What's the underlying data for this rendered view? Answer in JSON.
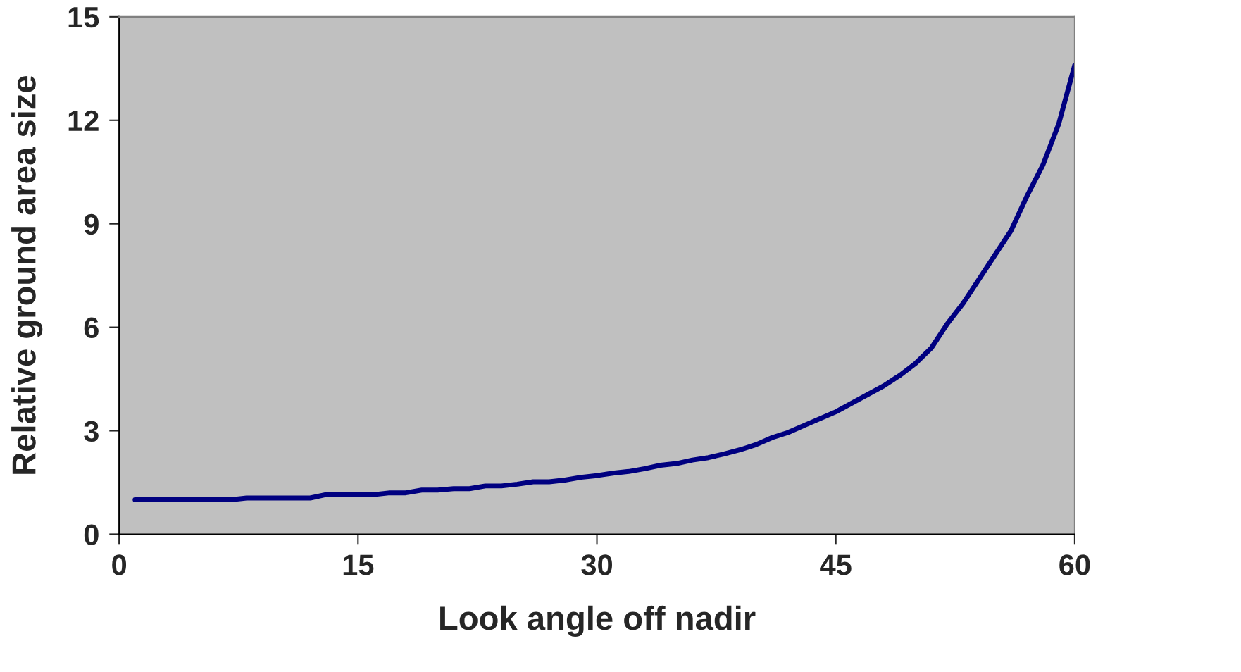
{
  "chart_data": {
    "type": "line",
    "xlabel": "Look angle off nadir",
    "ylabel": "Relative ground area size",
    "x": [
      1,
      7,
      8,
      12,
      13,
      16,
      17,
      18,
      19,
      20,
      21,
      22,
      23,
      24,
      25,
      26,
      27,
      28,
      29,
      30,
      31,
      32,
      33,
      34,
      35,
      36,
      37,
      38,
      39,
      40,
      41,
      42,
      43,
      44,
      45,
      46,
      47,
      48,
      49,
      50,
      51,
      52,
      53,
      54,
      55,
      56,
      57,
      58,
      59,
      60
    ],
    "series": [
      {
        "color": "#000080",
        "values": [
          1.0,
          1.0,
          1.05,
          1.05,
          1.15,
          1.15,
          1.2,
          1.2,
          1.28,
          1.28,
          1.32,
          1.32,
          1.4,
          1.4,
          1.45,
          1.52,
          1.52,
          1.57,
          1.65,
          1.7,
          1.77,
          1.82,
          1.9,
          2.0,
          2.05,
          2.15,
          2.22,
          2.33,
          2.45,
          2.6,
          2.8,
          2.95,
          3.15,
          3.35,
          3.55,
          3.8,
          4.05,
          4.3,
          4.6,
          4.95,
          5.4,
          6.1,
          6.7,
          7.4,
          8.1,
          8.8,
          9.8,
          10.7,
          11.9,
          13.6
        ]
      }
    ],
    "xlim": [
      0,
      60
    ],
    "xticks": [
      0,
      15,
      30,
      45,
      60
    ],
    "ylim": [
      0,
      15
    ],
    "yticks": [
      0,
      3,
      6,
      9,
      12,
      15
    ],
    "grid": false,
    "legend": false,
    "marker": "none",
    "line_style": "solid"
  }
}
